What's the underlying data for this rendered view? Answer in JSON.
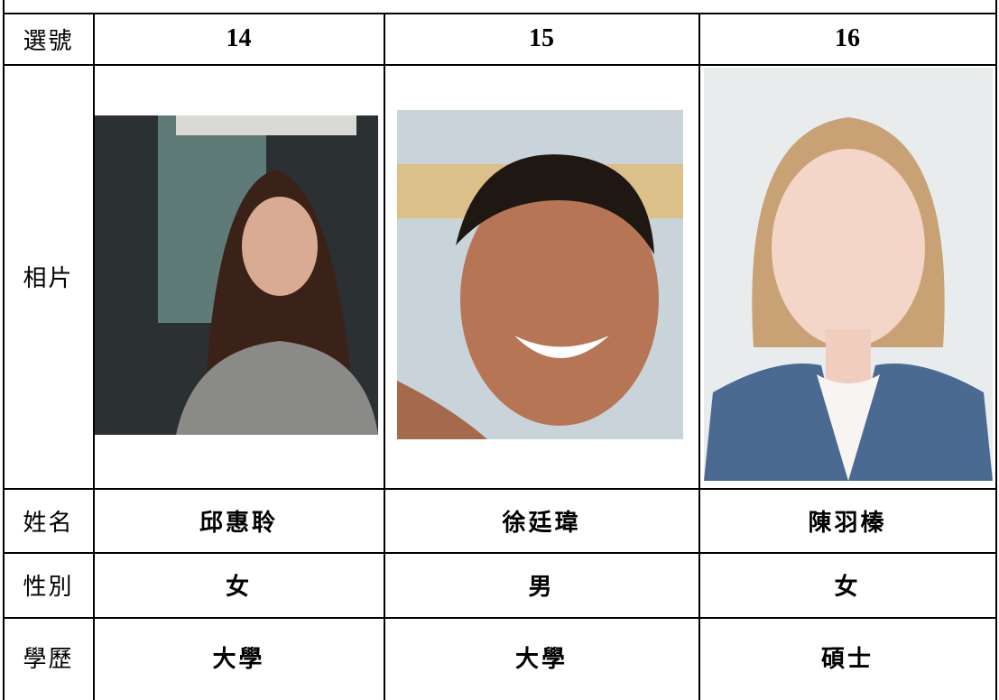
{
  "table": {
    "header": [
      "選號",
      "14",
      "15",
      "16"
    ],
    "rows": [
      [
        "相片"
      ],
      [
        "姓名",
        "邱惠聆",
        "徐廷瑋",
        "陳羽榛"
      ],
      [
        "性別",
        "女",
        "男",
        "女"
      ],
      [
        "學歷",
        "大學",
        "大學",
        "碩士"
      ]
    ]
  }
}
